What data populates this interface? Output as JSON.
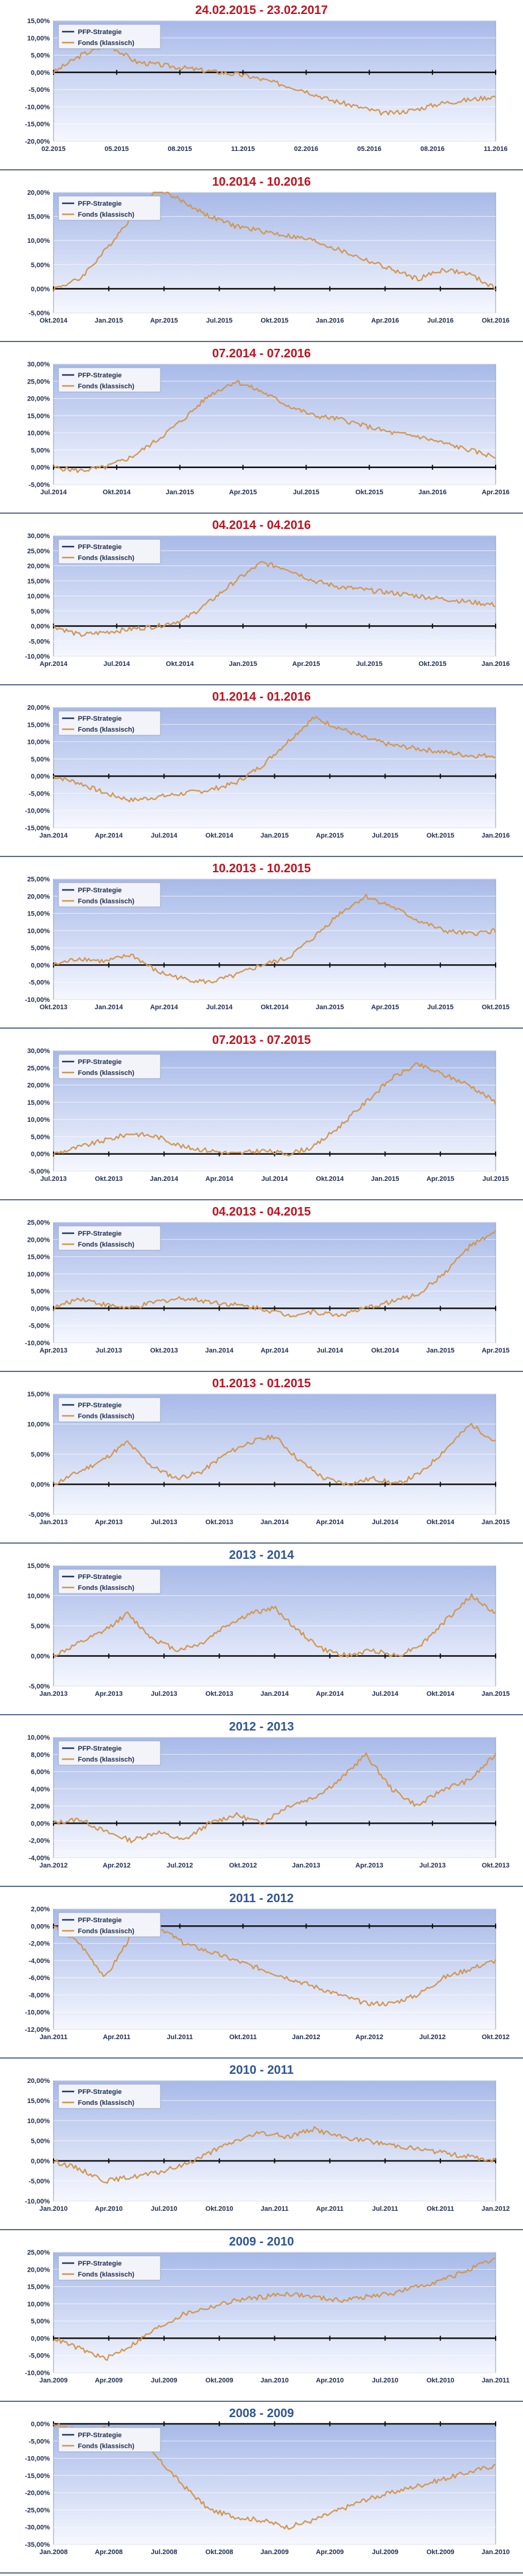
{
  "legend": {
    "strategy": "PFP-Strategie",
    "fund": "Fonds (klassisch)"
  },
  "colors": {
    "title_red": "#c0121f",
    "title_blue": "#2f5597",
    "fund_line": "#d2964f",
    "strategy_line": "#20386b",
    "zero_line": "#111111",
    "plot_top": "#a7b9e8",
    "plot_bottom": "#f6f8ff"
  },
  "chart_data": [
    {
      "type": "line",
      "title": "24.02.2015 - 23.02.2017",
      "title_color": "red",
      "ylim": [
        -20,
        15
      ],
      "yticks": [
        15,
        10,
        5,
        0,
        -5,
        -10,
        -15,
        -20
      ],
      "xticks": [
        "02.2015",
        "05.2015",
        "08.2015",
        "11.2015",
        "02.2016",
        "05.2016",
        "08.2016",
        "11.2016"
      ],
      "series": [
        {
          "name": "Fonds (klassisch)",
          "values": [
            0,
            5,
            8,
            3,
            2,
            1,
            0,
            -1,
            -3,
            -5,
            -8,
            -10,
            -12,
            -11,
            -9,
            -8,
            -7
          ]
        }
      ]
    },
    {
      "type": "line",
      "title": "10.2014 - 10.2016",
      "title_color": "red",
      "ylim": [
        -5,
        20
      ],
      "yticks": [
        20,
        15,
        10,
        5,
        0,
        -5
      ],
      "xticks": [
        "Okt.2014",
        "Jan.2015",
        "Apr.2015",
        "Jul.2015",
        "Okt.2015",
        "Jan.2016",
        "Apr.2016",
        "Jul.2016",
        "Okt.2016"
      ],
      "series": [
        {
          "name": "Fonds (klassisch)",
          "values": [
            0,
            2,
            8,
            15,
            21,
            18,
            15,
            13,
            12,
            11,
            10,
            8,
            6,
            4,
            2,
            4,
            3,
            0
          ]
        }
      ]
    },
    {
      "type": "line",
      "title": "07.2014 - 07.2016",
      "title_color": "red",
      "ylim": [
        -5,
        30
      ],
      "yticks": [
        30,
        25,
        20,
        15,
        10,
        5,
        0,
        -5
      ],
      "xticks": [
        "Jul.2014",
        "Okt.2014",
        "Jan.2015",
        "Apr.2015",
        "Jul.2015",
        "Okt.2015",
        "Jan.2016",
        "Apr.2016"
      ],
      "series": [
        {
          "name": "Fonds (klassisch)",
          "values": [
            0,
            -1,
            0,
            3,
            8,
            14,
            21,
            25,
            22,
            18,
            15,
            14,
            12,
            10,
            9,
            7,
            5,
            3
          ]
        }
      ]
    },
    {
      "type": "line",
      "title": "04.2014 - 04.2016",
      "title_color": "red",
      "ylim": [
        -10,
        30
      ],
      "yticks": [
        30,
        25,
        20,
        15,
        10,
        5,
        0,
        -5,
        -10
      ],
      "xticks": [
        "Apr.2014",
        "Jul.2014",
        "Okt.2014",
        "Jan.2015",
        "Apr.2015",
        "Jul.2015",
        "Okt.2015",
        "Jan.2016"
      ],
      "series": [
        {
          "name": "Fonds (klassisch)",
          "values": [
            0,
            -3,
            -2,
            -1,
            0,
            2,
            8,
            15,
            21,
            19,
            15,
            13,
            12,
            11,
            10,
            9,
            8,
            7
          ]
        }
      ]
    },
    {
      "type": "line",
      "title": "01.2014 - 01.2016",
      "title_color": "red",
      "ylim": [
        -15,
        20
      ],
      "yticks": [
        20,
        15,
        10,
        5,
        0,
        -5,
        -10,
        -15
      ],
      "xticks": [
        "Jan.2014",
        "Apr.2014",
        "Jul.2014",
        "Okt.2014",
        "Jan.2015",
        "Apr.2015",
        "Jul.2015",
        "Okt.2015",
        "Jan.2016"
      ],
      "series": [
        {
          "name": "Fonds (klassisch)",
          "values": [
            0,
            -2,
            -5,
            -7,
            -6,
            -5,
            -4,
            -2,
            3,
            10,
            17,
            14,
            11,
            9,
            8,
            7,
            6,
            6
          ]
        }
      ]
    },
    {
      "type": "line",
      "title": "10.2013 - 10.2015",
      "title_color": "red",
      "ylim": [
        -10,
        25
      ],
      "yticks": [
        25,
        20,
        15,
        10,
        5,
        0,
        -5,
        -10
      ],
      "xticks": [
        "Okt.2013",
        "Jan.2014",
        "Apr.2014",
        "Jul.2014",
        "Okt.2014",
        "Jan.2015",
        "Apr.2015",
        "Jul.2015",
        "Okt.2015"
      ],
      "series": [
        {
          "name": "Fonds (klassisch)",
          "values": [
            0,
            2,
            1,
            3,
            -2,
            -4,
            -5,
            -3,
            0,
            2,
            8,
            15,
            20,
            17,
            13,
            10,
            9,
            10
          ]
        }
      ]
    },
    {
      "type": "line",
      "title": "07.2013 - 07.2015",
      "title_color": "red",
      "ylim": [
        -5,
        30
      ],
      "yticks": [
        30,
        25,
        20,
        15,
        10,
        5,
        0,
        -5
      ],
      "xticks": [
        "Jul.2013",
        "Okt.2013",
        "Jan.2014",
        "Apr.2014",
        "Jul.2014",
        "Okt.2014",
        "Jan.2015",
        "Apr.2015",
        "Jul.2015"
      ],
      "series": [
        {
          "name": "Fonds (klassisch)",
          "values": [
            0,
            2,
            4,
            6,
            5,
            2,
            1,
            0,
            1,
            0,
            2,
            8,
            15,
            22,
            26,
            23,
            20,
            15
          ]
        }
      ]
    },
    {
      "type": "line",
      "title": "04.2013 - 04.2015",
      "title_color": "red",
      "ylim": [
        -10,
        25
      ],
      "yticks": [
        25,
        20,
        15,
        10,
        5,
        0,
        -5,
        -10
      ],
      "xticks": [
        "Apr.2013",
        "Jul.2013",
        "Okt.2013",
        "Jan.2014",
        "Apr.2014",
        "Jul.2014",
        "Okt.2014",
        "Jan.2015",
        "Apr.2015"
      ],
      "series": [
        {
          "name": "Fonds (klassisch)",
          "values": [
            0,
            3,
            1,
            0,
            2,
            3,
            2,
            1,
            0,
            -2,
            -1,
            -2,
            0,
            2,
            4,
            10,
            18,
            22
          ]
        }
      ]
    },
    {
      "type": "line",
      "title": "01.2013 - 01.2015",
      "title_color": "red",
      "ylim": [
        -5,
        15
      ],
      "yticks": [
        15,
        10,
        5,
        0,
        -5
      ],
      "xticks": [
        "Jan.2013",
        "Apr.2013",
        "Jul.2013",
        "Okt.2013",
        "Jan.2014",
        "Apr.2014",
        "Jul.2014",
        "Okt.2014",
        "Jan.2015"
      ],
      "series": [
        {
          "name": "Fonds (klassisch)",
          "values": [
            0,
            2,
            4,
            7,
            3,
            1,
            2,
            5,
            7,
            8,
            4,
            1,
            0,
            1,
            0,
            2,
            6,
            10,
            7
          ]
        }
      ]
    },
    {
      "type": "line",
      "title": "2013 - 2014",
      "title_color": "blue",
      "ylim": [
        -5,
        15
      ],
      "yticks": [
        15,
        10,
        5,
        0,
        -5
      ],
      "xticks": [
        "Jan.2013",
        "Apr.2013",
        "Jul.2013",
        "Okt.2013",
        "Jan.2014",
        "Apr.2014",
        "Jul.2014",
        "Okt.2014",
        "Jan.2015"
      ],
      "series": [
        {
          "name": "Fonds (klassisch)",
          "values": [
            0,
            2,
            4,
            7,
            3,
            1,
            2,
            5,
            7,
            8,
            4,
            1,
            0,
            1,
            0,
            2,
            6,
            10,
            7
          ]
        }
      ]
    },
    {
      "type": "line",
      "title": "2012 - 2013",
      "title_color": "blue",
      "ylim": [
        -4,
        10
      ],
      "yticks": [
        10,
        8,
        6,
        4,
        2,
        0,
        -2,
        -4
      ],
      "xticks": [
        "Jan.2012",
        "Apr.2012",
        "Jul.2012",
        "Okt.2012",
        "Jan.2013",
        "Apr.2013",
        "Jul.2013",
        "Okt.2013"
      ],
      "series": [
        {
          "name": "Fonds (klassisch)",
          "values": [
            0,
            0.5,
            -1,
            -2,
            -1,
            -2,
            0,
            1,
            0,
            2,
            3,
            5,
            8,
            4,
            2,
            4,
            5,
            8
          ]
        }
      ]
    },
    {
      "type": "line",
      "title": "2011 - 2012",
      "title_color": "blue",
      "ylim": [
        -12,
        2
      ],
      "yticks": [
        2,
        0,
        -2,
        -4,
        -6,
        -8,
        -10,
        -12
      ],
      "xticks": [
        "Jan.2011",
        "Apr.2011",
        "Jul.2011",
        "Okt.2011",
        "Jan.2012",
        "Apr.2012",
        "Jul.2012",
        "Okt.2012"
      ],
      "series": [
        {
          "name": "Fonds (klassisch)",
          "values": [
            0,
            -2,
            -6,
            -1,
            0,
            -2,
            -3,
            -4,
            -5,
            -6,
            -7,
            -8,
            -9,
            -9,
            -8,
            -6,
            -5,
            -4
          ]
        }
      ]
    },
    {
      "type": "line",
      "title": "2010 - 2011",
      "title_color": "blue",
      "ylim": [
        -10,
        20
      ],
      "yticks": [
        20,
        15,
        10,
        5,
        0,
        -5,
        -10
      ],
      "xticks": [
        "Jan.2010",
        "Apr.2010",
        "Jul.2010",
        "Okt.2010",
        "Jan.2011",
        "Apr.2011",
        "Jul.2011",
        "Okt.2011",
        "Jan.2012"
      ],
      "series": [
        {
          "name": "Fonds (klassisch)",
          "values": [
            0,
            -2,
            -5,
            -4,
            -3,
            -1,
            2,
            5,
            7,
            6,
            8,
            6,
            5,
            4,
            3,
            2,
            1,
            0
          ]
        }
      ]
    },
    {
      "type": "line",
      "title": "2009 - 2010",
      "title_color": "blue",
      "ylim": [
        -10,
        25
      ],
      "yticks": [
        25,
        20,
        15,
        10,
        5,
        0,
        -5,
        -10
      ],
      "xticks": [
        "Jan.2009",
        "Apr.2009",
        "Jul.2009",
        "Okt.2009",
        "Jan.2010",
        "Apr.2010",
        "Jul.2010",
        "Okt.2010",
        "Jan.2011"
      ],
      "series": [
        {
          "name": "Fonds (klassisch)",
          "values": [
            0,
            -3,
            -6,
            -2,
            3,
            7,
            9,
            11,
            12,
            13,
            12,
            11,
            12,
            13,
            15,
            17,
            20,
            23
          ]
        }
      ]
    },
    {
      "type": "line",
      "title": "2008 - 2009",
      "title_color": "blue",
      "ylim": [
        -35,
        0
      ],
      "yticks": [
        0,
        -5,
        -10,
        -15,
        -20,
        -25,
        -30,
        -35
      ],
      "xticks": [
        "Jan.2008",
        "Apr.2008",
        "Jul.2008",
        "Okt.2008",
        "Jan.2009",
        "Apr.2009",
        "Jul.2009",
        "Okt.2009",
        "Jan.2010"
      ],
      "series": [
        {
          "name": "Fonds (klassisch)",
          "values": [
            0,
            -2,
            -1,
            -3,
            -10,
            -18,
            -25,
            -27,
            -28,
            -30,
            -28,
            -25,
            -22,
            -20,
            -18,
            -16,
            -14,
            -12
          ]
        }
      ]
    }
  ]
}
